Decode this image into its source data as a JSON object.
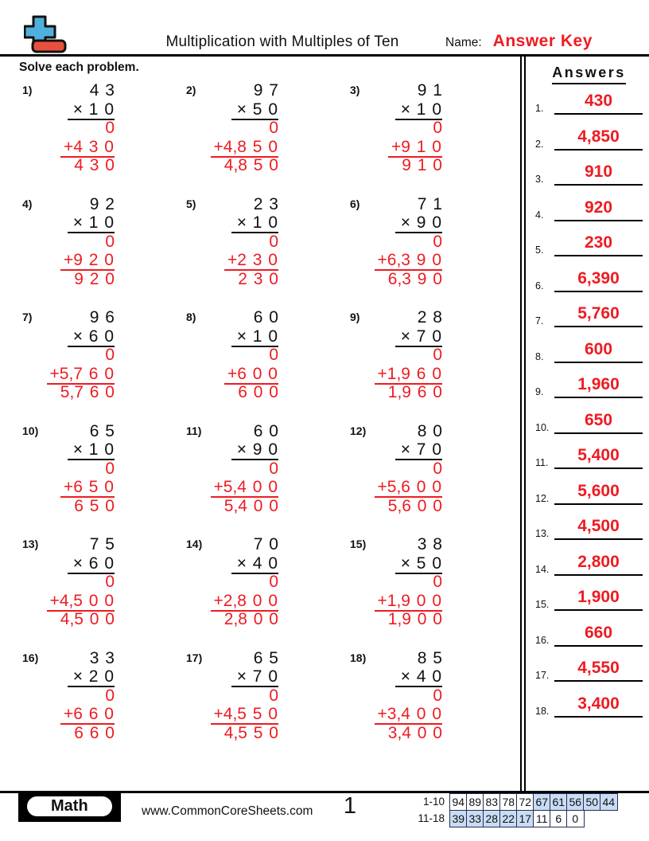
{
  "colors": {
    "accent_red": "#ee1b22",
    "logo_blue": "#4fb0dd",
    "logo_red": "#e8503e",
    "table_highlight": "#c9dcf4",
    "table_border": "#223055"
  },
  "header": {
    "title": "Multiplication with Multiples of Ten",
    "name_label": "Name:",
    "answer_key": "Answer Key"
  },
  "instruction": "Solve each problem.",
  "answers_panel": {
    "title": "Answers",
    "items": [
      {
        "num": "1.",
        "value": "430"
      },
      {
        "num": "2.",
        "value": "4,850"
      },
      {
        "num": "3.",
        "value": "910"
      },
      {
        "num": "4.",
        "value": "920"
      },
      {
        "num": "5.",
        "value": "230"
      },
      {
        "num": "6.",
        "value": "6,390"
      },
      {
        "num": "7.",
        "value": "5,760"
      },
      {
        "num": "8.",
        "value": "600"
      },
      {
        "num": "9.",
        "value": "1,960"
      },
      {
        "num": "10.",
        "value": "650"
      },
      {
        "num": "11.",
        "value": "5,400"
      },
      {
        "num": "12.",
        "value": "5,600"
      },
      {
        "num": "13.",
        "value": "4,500"
      },
      {
        "num": "14.",
        "value": "2,800"
      },
      {
        "num": "15.",
        "value": "1,900"
      },
      {
        "num": "16.",
        "value": "660"
      },
      {
        "num": "17.",
        "value": "4,550"
      },
      {
        "num": "18.",
        "value": "3,400"
      }
    ]
  },
  "problems": [
    {
      "num": "1)",
      "top": "4 3",
      "mult": "× 1 0",
      "partial": "0",
      "plus": "+4 3 0",
      "product": "4 3 0"
    },
    {
      "num": "2)",
      "top": "9 7",
      "mult": "× 5 0",
      "partial": "0",
      "plus": "+4,8 5 0",
      "product": "4,8 5 0"
    },
    {
      "num": "3)",
      "top": "9 1",
      "mult": "× 1 0",
      "partial": "0",
      "plus": "+9 1 0",
      "product": "9 1 0"
    },
    {
      "num": "4)",
      "top": "9 2",
      "mult": "× 1 0",
      "partial": "0",
      "plus": "+9 2 0",
      "product": "9 2 0"
    },
    {
      "num": "5)",
      "top": "2 3",
      "mult": "× 1 0",
      "partial": "0",
      "plus": "+2 3 0",
      "product": "2 3 0"
    },
    {
      "num": "6)",
      "top": "7 1",
      "mult": "× 9 0",
      "partial": "0",
      "plus": "+6,3 9 0",
      "product": "6,3 9 0"
    },
    {
      "num": "7)",
      "top": "9 6",
      "mult": "× 6 0",
      "partial": "0",
      "plus": "+5,7 6 0",
      "product": "5,7 6 0"
    },
    {
      "num": "8)",
      "top": "6 0",
      "mult": "× 1 0",
      "partial": "0",
      "plus": "+6 0 0",
      "product": "6 0 0"
    },
    {
      "num": "9)",
      "top": "2 8",
      "mult": "× 7 0",
      "partial": "0",
      "plus": "+1,9 6 0",
      "product": "1,9 6 0"
    },
    {
      "num": "10)",
      "top": "6 5",
      "mult": "× 1 0",
      "partial": "0",
      "plus": "+6 5 0",
      "product": "6 5 0"
    },
    {
      "num": "11)",
      "top": "6 0",
      "mult": "× 9 0",
      "partial": "0",
      "plus": "+5,4 0 0",
      "product": "5,4 0 0"
    },
    {
      "num": "12)",
      "top": "8 0",
      "mult": "× 7 0",
      "partial": "0",
      "plus": "+5,6 0 0",
      "product": "5,6 0 0"
    },
    {
      "num": "13)",
      "top": "7 5",
      "mult": "× 6 0",
      "partial": "0",
      "plus": "+4,5 0 0",
      "product": "4,5 0 0"
    },
    {
      "num": "14)",
      "top": "7 0",
      "mult": "× 4 0",
      "partial": "0",
      "plus": "+2,8 0 0",
      "product": "2,8 0 0"
    },
    {
      "num": "15)",
      "top": "3 8",
      "mult": "× 5 0",
      "partial": "0",
      "plus": "+1,9 0 0",
      "product": "1,9 0 0"
    },
    {
      "num": "16)",
      "top": "3 3",
      "mult": "× 2 0",
      "partial": "0",
      "plus": "+6 6 0",
      "product": "6 6 0"
    },
    {
      "num": "17)",
      "top": "6 5",
      "mult": "× 7 0",
      "partial": "0",
      "plus": "+4,5 5 0",
      "product": "4,5 5 0"
    },
    {
      "num": "18)",
      "top": "8 5",
      "mult": "× 4 0",
      "partial": "0",
      "plus": "+3,4 0 0",
      "product": "3,4 0 0"
    }
  ],
  "footer": {
    "subject": "Math",
    "website": "www.CommonCoreSheets.com",
    "page": "1",
    "score_table": {
      "rows": [
        {
          "label": "1-10",
          "cells": [
            {
              "value": "94",
              "highlighted": false
            },
            {
              "value": "89",
              "highlighted": false
            },
            {
              "value": "83",
              "highlighted": false
            },
            {
              "value": "78",
              "highlighted": false
            },
            {
              "value": "72",
              "highlighted": false
            },
            {
              "value": "67",
              "highlighted": true
            },
            {
              "value": "61",
              "highlighted": true
            },
            {
              "value": "56",
              "highlighted": true
            },
            {
              "value": "50",
              "highlighted": true
            },
            {
              "value": "44",
              "highlighted": true
            }
          ]
        },
        {
          "label": "11-18",
          "cells": [
            {
              "value": "39",
              "highlighted": true
            },
            {
              "value": "33",
              "highlighted": true
            },
            {
              "value": "28",
              "highlighted": true
            },
            {
              "value": "22",
              "highlighted": true
            },
            {
              "value": "17",
              "highlighted": true
            },
            {
              "value": "11",
              "highlighted": false
            },
            {
              "value": "6",
              "highlighted": false
            },
            {
              "value": "0",
              "highlighted": false
            }
          ]
        }
      ]
    }
  }
}
